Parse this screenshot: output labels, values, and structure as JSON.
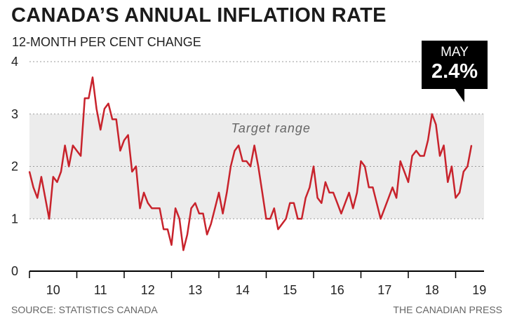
{
  "header": {
    "title": "CANADA’S ANNUAL INFLATION RATE",
    "subtitle": "12-MONTH PER CENT CHANGE"
  },
  "callout": {
    "month": "MAY",
    "value": "2.4%"
  },
  "footer": {
    "source": "SOURCE: STATISTICS CANADA",
    "credit": "THE CANADIAN PRESS"
  },
  "colors": {
    "line": "#c8232c",
    "band": "#ececec",
    "grid": "#9a9a9a",
    "callout_bg": "#000000"
  },
  "chart_data": {
    "type": "line",
    "title": "CANADA’S ANNUAL INFLATION RATE",
    "subtitle": "12-MONTH PER CENT CHANGE",
    "ylim": [
      0,
      4
    ],
    "yticks": [
      "0",
      "1",
      "2",
      "3",
      "4"
    ],
    "xlim": [
      2010,
      2019.6
    ],
    "xticks": [
      "10",
      "11",
      "12",
      "13",
      "14",
      "15",
      "16",
      "17",
      "18",
      "19"
    ],
    "x_start": "2010-01",
    "target_band": {
      "label": "Target range",
      "low": 1,
      "high": 3
    },
    "series": [
      {
        "values": [
          1.9,
          1.6,
          1.4,
          1.8,
          1.4,
          1.0,
          1.8,
          1.7,
          1.9,
          2.4,
          2.0,
          2.4,
          2.3,
          2.2,
          3.3,
          3.3,
          3.7,
          3.1,
          2.7,
          3.1,
          3.2,
          2.9,
          2.9,
          2.3,
          2.5,
          2.6,
          1.9,
          2.0,
          1.2,
          1.5,
          1.3,
          1.2,
          1.2,
          1.2,
          0.8,
          0.8,
          0.5,
          1.2,
          1.0,
          0.4,
          0.7,
          1.2,
          1.3,
          1.1,
          1.1,
          0.7,
          0.9,
          1.2,
          1.5,
          1.1,
          1.5,
          2.0,
          2.3,
          2.4,
          2.1,
          2.1,
          2.0,
          2.4,
          2.0,
          1.5,
          1.0,
          1.0,
          1.2,
          0.8,
          0.9,
          1.0,
          1.3,
          1.3,
          1.0,
          1.0,
          1.4,
          1.6,
          2.0,
          1.4,
          1.3,
          1.7,
          1.5,
          1.5,
          1.3,
          1.1,
          1.3,
          1.5,
          1.2,
          1.5,
          2.1,
          2.0,
          1.6,
          1.6,
          1.3,
          1.0,
          1.2,
          1.4,
          1.6,
          1.4,
          2.1,
          1.9,
          1.7,
          2.2,
          2.3,
          2.2,
          2.2,
          2.5,
          3.0,
          2.8,
          2.2,
          2.4,
          1.7,
          2.0,
          1.4,
          1.5,
          1.9,
          2.0,
          2.4
        ]
      }
    ]
  }
}
